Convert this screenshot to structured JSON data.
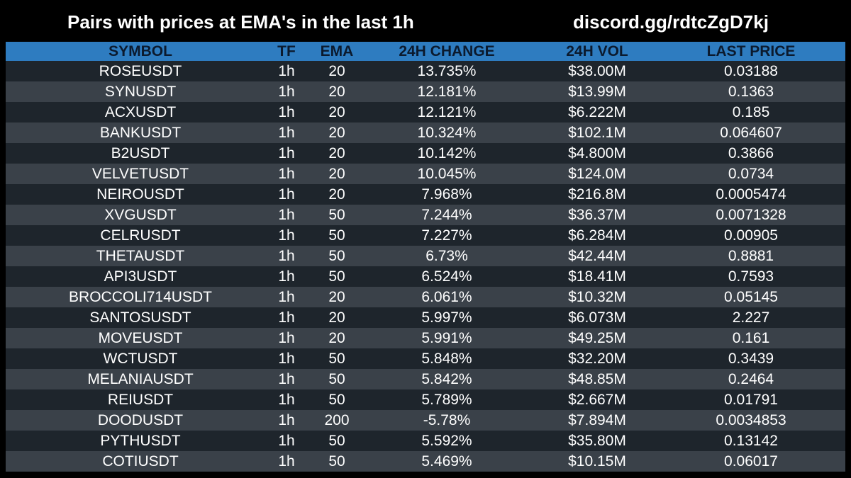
{
  "header": {
    "title": "Pairs with prices at EMA's in the last 1h",
    "link": "discord.gg/rdtcZgD7kj"
  },
  "colors": {
    "background": "#000000",
    "header_row": "#2e7cc0",
    "row_dark": "#1e252c",
    "row_light": "#3a4149",
    "text": "#ffffff"
  },
  "columns": [
    "SYMBOL",
    "TF",
    "EMA",
    "24H CHANGE",
    "24H VOL",
    "LAST PRICE"
  ],
  "rows": [
    [
      "ROSEUSDT",
      "1h",
      "20",
      "13.735%",
      "$38.00M",
      "0.03188"
    ],
    [
      "SYNUSDT",
      "1h",
      "20",
      "12.181%",
      "$13.99M",
      "0.1363"
    ],
    [
      "ACXUSDT",
      "1h",
      "20",
      "12.121%",
      "$6.222M",
      "0.185"
    ],
    [
      "BANKUSDT",
      "1h",
      "20",
      "10.324%",
      "$102.1M",
      "0.064607"
    ],
    [
      "B2USDT",
      "1h",
      "20",
      "10.142%",
      "$4.800M",
      "0.3866"
    ],
    [
      "VELVETUSDT",
      "1h",
      "20",
      "10.045%",
      "$124.0M",
      "0.0734"
    ],
    [
      "NEIROUSDT",
      "1h",
      "20",
      "7.968%",
      "$216.8M",
      "0.0005474"
    ],
    [
      "XVGUSDT",
      "1h",
      "50",
      "7.244%",
      "$36.37M",
      "0.0071328"
    ],
    [
      "CELRUSDT",
      "1h",
      "50",
      "7.227%",
      "$6.284M",
      "0.00905"
    ],
    [
      "THETAUSDT",
      "1h",
      "50",
      "6.73%",
      "$42.44M",
      "0.8881"
    ],
    [
      "API3USDT",
      "1h",
      "50",
      "6.524%",
      "$18.41M",
      "0.7593"
    ],
    [
      "BROCCOLI714USDT",
      "1h",
      "20",
      "6.061%",
      "$10.32M",
      "0.05145"
    ],
    [
      "SANTOSUSDT",
      "1h",
      "20",
      "5.997%",
      "$6.073M",
      "2.227"
    ],
    [
      "MOVEUSDT",
      "1h",
      "20",
      "5.991%",
      "$49.25M",
      "0.161"
    ],
    [
      "WCTUSDT",
      "1h",
      "50",
      "5.848%",
      "$32.20M",
      "0.3439"
    ],
    [
      "MELANIAUSDT",
      "1h",
      "50",
      "5.842%",
      "$48.85M",
      "0.2464"
    ],
    [
      "REIUSDT",
      "1h",
      "50",
      "5.789%",
      "$2.667M",
      "0.01791"
    ],
    [
      "DOODUSDT",
      "1h",
      "200",
      "-5.78%",
      "$7.894M",
      "0.0034853"
    ],
    [
      "PYTHUSDT",
      "1h",
      "50",
      "5.592%",
      "$35.80M",
      "0.13142"
    ],
    [
      "COTIUSDT",
      "1h",
      "50",
      "5.469%",
      "$10.15M",
      "0.06017"
    ]
  ]
}
